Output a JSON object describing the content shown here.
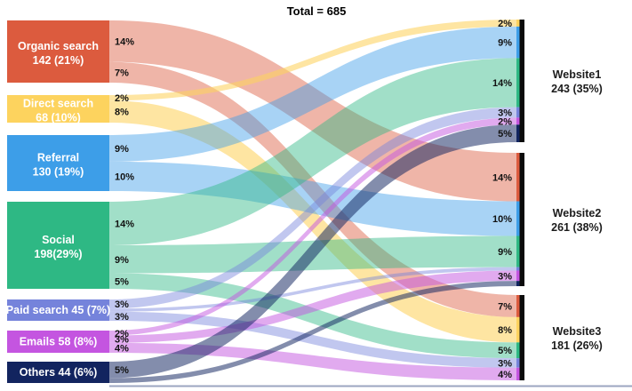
{
  "title": "Total = 685",
  "chart_data": {
    "type": "sankey",
    "title": "Total = 685",
    "total": 685,
    "legend_position": "none",
    "grid": false,
    "sources": [
      {
        "id": "organic-search",
        "lines": [
          "Organic search",
          "142 (21%)"
        ],
        "value": 142,
        "pct": 21,
        "color": "#dc5b3e"
      },
      {
        "id": "direct-search",
        "lines": [
          "Direct search",
          "68 (10%)"
        ],
        "value": 68,
        "pct": 10,
        "color": "#fdd35e"
      },
      {
        "id": "referral",
        "lines": [
          "Referral",
          "130 (19%)"
        ],
        "value": 130,
        "pct": 19,
        "color": "#3d9ee8"
      },
      {
        "id": "social",
        "lines": [
          "Social",
          "198(29%)"
        ],
        "value": 198,
        "pct": 29,
        "color": "#2eb884"
      },
      {
        "id": "paid-search",
        "lines": [
          "Paid search 45 (7%)"
        ],
        "value": 45,
        "pct": 7,
        "color": "#7583db"
      },
      {
        "id": "emails",
        "lines": [
          "Emails 58 (8%)"
        ],
        "value": 58,
        "pct": 8,
        "color": "#c455e0"
      },
      {
        "id": "others",
        "lines": [
          "Others 44 (6%)"
        ],
        "value": 44,
        "pct": 6,
        "color": "#12245f"
      }
    ],
    "targets": [
      {
        "id": "website1",
        "lines": [
          "Website1",
          "243 (35%)"
        ],
        "value": 243,
        "pct": 35,
        "color": "#0b0b0b"
      },
      {
        "id": "website2",
        "lines": [
          "Website2",
          "261 (38%)"
        ],
        "value": 261,
        "pct": 38,
        "color": "#0b0b0b"
      },
      {
        "id": "website3",
        "lines": [
          "Website3",
          "181 (26%)"
        ],
        "value": 181,
        "pct": 26,
        "color": "#0b0b0b"
      }
    ],
    "flows": [
      {
        "source": "organic-search",
        "target": "website2",
        "pct": 14,
        "label": "14%"
      },
      {
        "source": "organic-search",
        "target": "website3",
        "pct": 7,
        "label": "7%"
      },
      {
        "source": "direct-search",
        "target": "website1",
        "pct": 2,
        "label": "2%"
      },
      {
        "source": "direct-search",
        "target": "website3",
        "pct": 8,
        "label": "8%"
      },
      {
        "source": "referral",
        "target": "website1",
        "pct": 9,
        "label": "9%"
      },
      {
        "source": "referral",
        "target": "website2",
        "pct": 10,
        "label": "10%"
      },
      {
        "source": "social",
        "target": "website1",
        "pct": 14,
        "label": "14%"
      },
      {
        "source": "social",
        "target": "website2",
        "pct": 9,
        "label": "9%"
      },
      {
        "source": "social",
        "target": "website3",
        "pct": 5,
        "label": "5%"
      },
      {
        "source": "paid-search",
        "target": "website1",
        "pct": 3,
        "label": "3%"
      },
      {
        "source": "paid-search",
        "target": "website2",
        "pct": 1,
        "label": ""
      },
      {
        "source": "paid-search",
        "target": "website3",
        "pct": 3,
        "label": "3%"
      },
      {
        "source": "emails",
        "target": "website1",
        "pct": 2,
        "label": "2%"
      },
      {
        "source": "emails",
        "target": "website2",
        "pct": 3,
        "label": "3%"
      },
      {
        "source": "emails",
        "target": "website3",
        "pct": 4,
        "label": "4%"
      },
      {
        "source": "others",
        "target": "website1",
        "pct": 5,
        "label": "5%"
      },
      {
        "source": "others",
        "target": "website2",
        "pct": 1.5,
        "label": ""
      }
    ]
  }
}
